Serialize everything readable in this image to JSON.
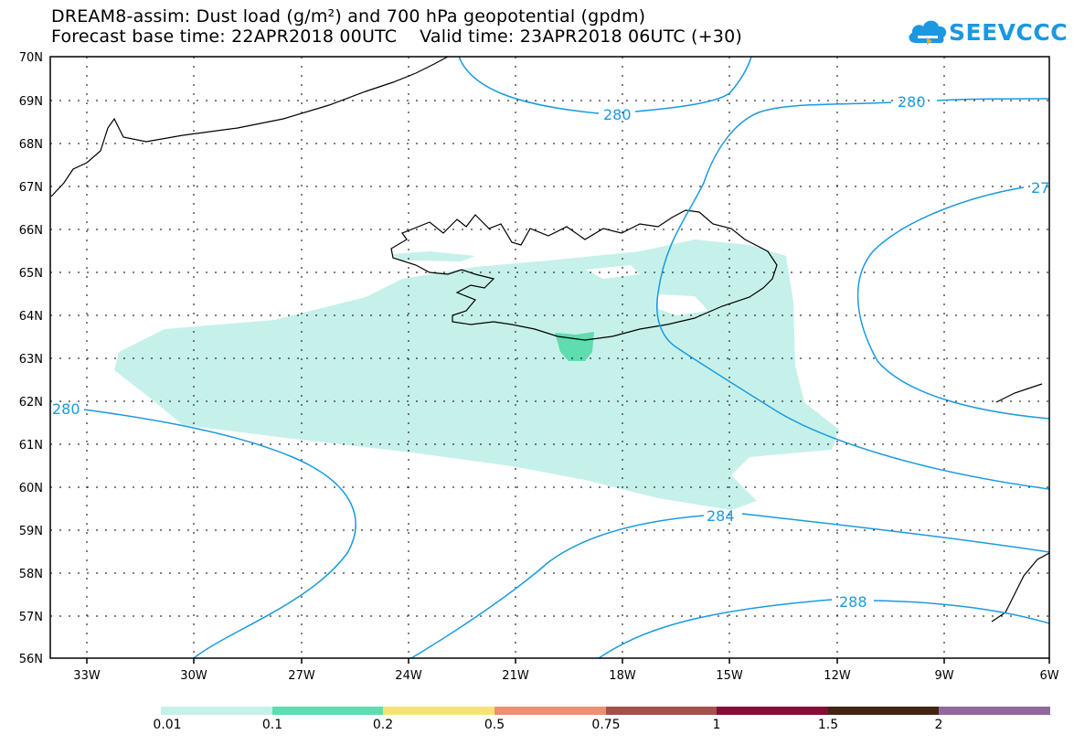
{
  "title": {
    "line1": "DREAM8-assim: Dust load (g/m²) and 700 hPa geopotential (gpdm)",
    "line2": "Forecast base time: 22APR2018 00UTC    Valid time: 23APR2018 06UTC (+30)"
  },
  "logo": {
    "text": "SEEVCCC",
    "icon": "cloud-icon",
    "color": "#1b98e0"
  },
  "map": {
    "lat_labels": [
      "70N",
      "69N",
      "68N",
      "67N",
      "66N",
      "65N",
      "64N",
      "63N",
      "62N",
      "61N",
      "60N",
      "59N",
      "58N",
      "57N",
      "56N"
    ],
    "lon_labels": [
      "33W",
      "30W",
      "27W",
      "24W",
      "21W",
      "18W",
      "15W",
      "12W",
      "9W",
      "6W"
    ],
    "contour_labels": [
      "280",
      "280",
      "27",
      "280",
      "284",
      "288"
    ],
    "contour_color": "#1a9ae0",
    "dust_colors": {
      "light": "#c6f1ea",
      "medium": "#5fdcb0"
    }
  },
  "colorbar": {
    "colors": [
      "#c6f1ea",
      "#5fdcb0",
      "#f5e37a",
      "#eb9070",
      "#a5514a",
      "#830c38",
      "#412412",
      "#91689c"
    ],
    "labels": [
      "0.01",
      "0.1",
      "0.2",
      "0.5",
      "0.75",
      "1",
      "1.5",
      "2"
    ]
  }
}
